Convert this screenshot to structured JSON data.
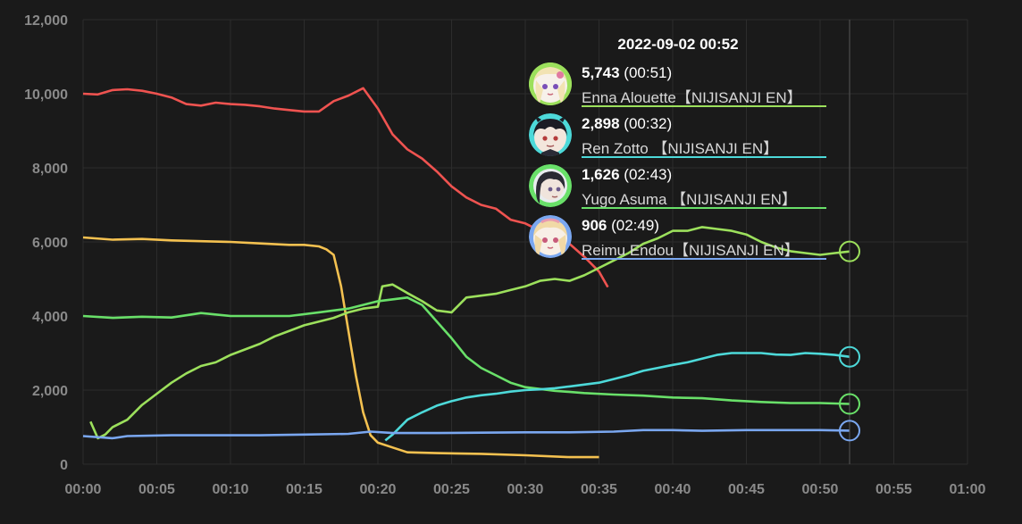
{
  "colors": {
    "background": "#1a1a1a",
    "grid": "#2c2c2c",
    "tick": "#8a8a8a",
    "hover_line": "#555555"
  },
  "chart_data": {
    "type": "line",
    "x_unit": "HH:MM",
    "xlim": [
      "00:00",
      "01:00"
    ],
    "ylim": [
      0,
      12000
    ],
    "x_ticks": [
      "00:00",
      "00:05",
      "00:10",
      "00:15",
      "00:20",
      "00:25",
      "00:30",
      "00:35",
      "00:40",
      "00:45",
      "00:50",
      "00:55",
      "01:00"
    ],
    "y_ticks": [
      0,
      2000,
      4000,
      6000,
      8000,
      10000,
      12000
    ],
    "y_tick_labels": [
      "0",
      "2,000",
      "4,000",
      "6,000",
      "8,000",
      "10,000",
      "12,000"
    ],
    "grid": true,
    "hover_time": "00:52",
    "series": [
      {
        "color": "#ef5350",
        "points": [
          [
            "00:00",
            10000
          ],
          [
            "00:01",
            9980
          ],
          [
            "00:02",
            10100
          ],
          [
            "00:03",
            10120
          ],
          [
            "00:04",
            10080
          ],
          [
            "00:05",
            10000
          ],
          [
            "00:06",
            9900
          ],
          [
            "00:07",
            9720
          ],
          [
            "00:08",
            9680
          ],
          [
            "00:09",
            9760
          ],
          [
            "00:10",
            9720
          ],
          [
            "00:11",
            9700
          ],
          [
            "00:12",
            9660
          ],
          [
            "00:13",
            9600
          ],
          [
            "00:14",
            9560
          ],
          [
            "00:15",
            9520
          ],
          [
            "00:16",
            9520
          ],
          [
            "00:17",
            9800
          ],
          [
            "00:18",
            9950
          ],
          [
            "00:19",
            10150
          ],
          [
            "00:20",
            9600
          ],
          [
            "00:21",
            8900
          ],
          [
            "00:22",
            8500
          ],
          [
            "00:23",
            8250
          ],
          [
            "00:24",
            7900
          ],
          [
            "00:25",
            7500
          ],
          [
            "00:26",
            7200
          ],
          [
            "00:27",
            7000
          ],
          [
            "00:28",
            6900
          ],
          [
            "00:29",
            6600
          ],
          [
            "00:30",
            6500
          ],
          [
            "00:31",
            6300
          ],
          [
            "00:32",
            6150
          ],
          [
            "00:33",
            5950
          ],
          [
            "00:34",
            5600
          ],
          [
            "00:35",
            5200
          ],
          [
            "00:35.6",
            4780
          ]
        ]
      },
      {
        "color": "#f4c150",
        "points": [
          [
            "00:00",
            6120
          ],
          [
            "00:02",
            6060
          ],
          [
            "00:04",
            6080
          ],
          [
            "00:06",
            6040
          ],
          [
            "00:08",
            6020
          ],
          [
            "00:10",
            6000
          ],
          [
            "00:12",
            5960
          ],
          [
            "00:14",
            5920
          ],
          [
            "00:15",
            5920
          ],
          [
            "00:16",
            5880
          ],
          [
            "00:16.5",
            5800
          ],
          [
            "00:17",
            5650
          ],
          [
            "00:17.5",
            4800
          ],
          [
            "00:18",
            3600
          ],
          [
            "00:18.5",
            2400
          ],
          [
            "00:19",
            1400
          ],
          [
            "00:19.5",
            780
          ],
          [
            "00:20",
            580
          ],
          [
            "00:21",
            450
          ],
          [
            "00:22",
            320
          ],
          [
            "00:24",
            300
          ],
          [
            "00:27",
            280
          ],
          [
            "00:30",
            240
          ],
          [
            "00:33",
            190
          ],
          [
            "00:35",
            190
          ]
        ]
      },
      {
        "color": "#9ce05c",
        "points": [
          [
            "00:00.5",
            1150
          ],
          [
            "00:01",
            700
          ],
          [
            "00:01.5",
            800
          ],
          [
            "00:02",
            1000
          ],
          [
            "00:03",
            1200
          ],
          [
            "00:04",
            1600
          ],
          [
            "00:05",
            1900
          ],
          [
            "00:06",
            2200
          ],
          [
            "00:07",
            2450
          ],
          [
            "00:08",
            2650
          ],
          [
            "00:09",
            2750
          ],
          [
            "00:10",
            2950
          ],
          [
            "00:11",
            3100
          ],
          [
            "00:12",
            3250
          ],
          [
            "00:13",
            3450
          ],
          [
            "00:14",
            3600
          ],
          [
            "00:15",
            3750
          ],
          [
            "00:16",
            3850
          ],
          [
            "00:17",
            3950
          ],
          [
            "00:18",
            4100
          ],
          [
            "00:19",
            4200
          ],
          [
            "00:20",
            4250
          ],
          [
            "00:20.3",
            4800
          ],
          [
            "00:21",
            4850
          ],
          [
            "00:22",
            4620
          ],
          [
            "00:23",
            4400
          ],
          [
            "00:24",
            4150
          ],
          [
            "00:25",
            4100
          ],
          [
            "00:25.5",
            4300
          ],
          [
            "00:26",
            4500
          ],
          [
            "00:28",
            4600
          ],
          [
            "00:29",
            4700
          ],
          [
            "00:30",
            4800
          ],
          [
            "00:31",
            4950
          ],
          [
            "00:32",
            5000
          ],
          [
            "00:33",
            4950
          ],
          [
            "00:34",
            5100
          ],
          [
            "00:35",
            5300
          ],
          [
            "00:36",
            5500
          ],
          [
            "00:37",
            5700
          ],
          [
            "00:38",
            5950
          ],
          [
            "00:39",
            6100
          ],
          [
            "00:40",
            6300
          ],
          [
            "00:41",
            6300
          ],
          [
            "00:42",
            6400
          ],
          [
            "00:43",
            6350
          ],
          [
            "00:44",
            6300
          ],
          [
            "00:45",
            6200
          ],
          [
            "00:46",
            6000
          ],
          [
            "00:47",
            5850
          ],
          [
            "00:48",
            5750
          ],
          [
            "00:49",
            5700
          ],
          [
            "00:50",
            5650
          ],
          [
            "00:51",
            5700
          ],
          [
            "00:52",
            5743
          ]
        ]
      },
      {
        "color": "#69e069",
        "points": [
          [
            "00:00",
            4000
          ],
          [
            "00:02",
            3950
          ],
          [
            "00:04",
            3980
          ],
          [
            "00:06",
            3960
          ],
          [
            "00:08",
            4080
          ],
          [
            "00:10",
            4000
          ],
          [
            "00:12",
            4000
          ],
          [
            "00:14",
            4000
          ],
          [
            "00:16",
            4100
          ],
          [
            "00:18",
            4200
          ],
          [
            "00:20",
            4400
          ],
          [
            "00:22",
            4500
          ],
          [
            "00:23",
            4300
          ],
          [
            "00:24",
            3850
          ],
          [
            "00:25",
            3400
          ],
          [
            "00:26",
            2900
          ],
          [
            "00:27",
            2600
          ],
          [
            "00:28",
            2400
          ],
          [
            "00:29",
            2200
          ],
          [
            "00:30",
            2080
          ],
          [
            "00:32",
            1980
          ],
          [
            "00:34",
            1920
          ],
          [
            "00:36",
            1880
          ],
          [
            "00:38",
            1850
          ],
          [
            "00:40",
            1800
          ],
          [
            "00:42",
            1780
          ],
          [
            "00:44",
            1720
          ],
          [
            "00:46",
            1680
          ],
          [
            "00:48",
            1650
          ],
          [
            "00:50",
            1650
          ],
          [
            "00:52",
            1626
          ]
        ]
      },
      {
        "color": "#4dd9d9",
        "points": [
          [
            "00:20.5",
            640
          ],
          [
            "00:21",
            800
          ],
          [
            "00:22",
            1200
          ],
          [
            "00:23",
            1400
          ],
          [
            "00:24",
            1580
          ],
          [
            "00:25",
            1700
          ],
          [
            "00:26",
            1800
          ],
          [
            "00:27",
            1860
          ],
          [
            "00:28",
            1900
          ],
          [
            "00:29",
            1960
          ],
          [
            "00:30",
            2000
          ],
          [
            "00:31",
            2020
          ],
          [
            "00:32",
            2050
          ],
          [
            "00:33",
            2100
          ],
          [
            "00:34",
            2150
          ],
          [
            "00:35",
            2200
          ],
          [
            "00:36",
            2300
          ],
          [
            "00:37",
            2400
          ],
          [
            "00:38",
            2520
          ],
          [
            "00:39",
            2600
          ],
          [
            "00:40",
            2680
          ],
          [
            "00:41",
            2750
          ],
          [
            "00:42",
            2850
          ],
          [
            "00:43",
            2950
          ],
          [
            "00:44",
            3000
          ],
          [
            "00:45",
            3000
          ],
          [
            "00:46",
            3000
          ],
          [
            "00:47",
            2960
          ],
          [
            "00:48",
            2950
          ],
          [
            "00:49",
            3000
          ],
          [
            "00:50",
            2980
          ],
          [
            "00:51",
            2950
          ],
          [
            "00:52",
            2898
          ]
        ]
      },
      {
        "color": "#7aa7f0",
        "points": [
          [
            "00:00",
            760
          ],
          [
            "00:02",
            700
          ],
          [
            "00:03",
            760
          ],
          [
            "00:06",
            780
          ],
          [
            "00:09",
            780
          ],
          [
            "00:12",
            780
          ],
          [
            "00:15",
            800
          ],
          [
            "00:18",
            820
          ],
          [
            "00:19.5",
            880
          ],
          [
            "00:21",
            840
          ],
          [
            "00:24",
            840
          ],
          [
            "00:27",
            850
          ],
          [
            "00:30",
            860
          ],
          [
            "00:33",
            860
          ],
          [
            "00:36",
            880
          ],
          [
            "00:38",
            920
          ],
          [
            "00:40",
            920
          ],
          [
            "00:42",
            900
          ],
          [
            "00:45",
            920
          ],
          [
            "00:48",
            920
          ],
          [
            "00:50",
            920
          ],
          [
            "00:52",
            906
          ]
        ]
      }
    ]
  },
  "tooltip": {
    "time": "2022-09-02 00:52",
    "rows": [
      {
        "value": "5,743",
        "peak": "(00:51)",
        "name": "Enna Alouette【NIJISANJI EN】",
        "color": "#9ce05c",
        "avatar": "enna-avatar-icon"
      },
      {
        "value": "2,898",
        "peak": "(00:32)",
        "name": "Ren Zotto 【NIJISANJI EN】",
        "color": "#4dd9d9",
        "avatar": "ren-avatar-icon"
      },
      {
        "value": "1,626",
        "peak": "(02:43)",
        "name": "Yugo Asuma 【NIJISANJI EN】",
        "color": "#69e069",
        "avatar": "yugo-avatar-icon"
      },
      {
        "value": "906",
        "peak": "(02:49)",
        "name": "Reimu Endou【NIJISANJI EN】",
        "color": "#7aa7f0",
        "avatar": "reimu-avatar-icon"
      }
    ]
  }
}
